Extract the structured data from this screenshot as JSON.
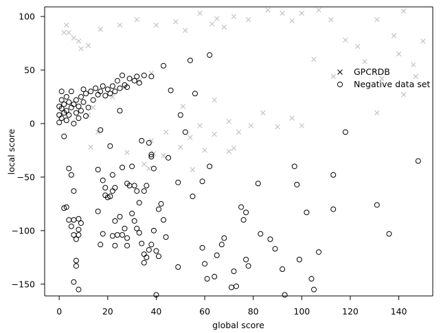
{
  "chart_data": {
    "type": "scatter",
    "xlabel": "global score",
    "ylabel": "local score",
    "xlim": [
      -6,
      154
    ],
    "ylim": [
      -161,
      109
    ],
    "x_ticks": [
      0,
      20,
      40,
      60,
      80,
      100,
      120,
      140
    ],
    "y_ticks": [
      -150,
      -100,
      -50,
      0,
      50,
      100
    ],
    "grid": false,
    "legend": "right",
    "series": [
      {
        "name": "GPCRDB",
        "marker": "x",
        "color": "#bfbfbf",
        "points": [
          [
            2,
            85
          ],
          [
            3,
            92
          ],
          [
            4,
            85
          ],
          [
            6,
            80
          ],
          [
            8,
            77
          ],
          [
            9,
            70
          ],
          [
            12,
            73
          ],
          [
            17,
            88
          ],
          [
            25,
            92
          ],
          [
            32,
            97
          ],
          [
            40,
            92
          ],
          [
            48,
            95
          ],
          [
            52,
            87
          ],
          [
            58,
            103
          ],
          [
            63,
            93
          ],
          [
            65,
            98
          ],
          [
            68,
            90
          ],
          [
            72,
            100
          ],
          [
            78,
            97
          ],
          [
            86,
            106
          ],
          [
            92,
            103
          ],
          [
            96,
            96
          ],
          [
            100,
            103
          ],
          [
            107,
            106
          ],
          [
            112,
            97
          ],
          [
            118,
            78
          ],
          [
            123,
            72
          ],
          [
            131,
            97
          ],
          [
            138,
            82
          ],
          [
            142,
            105
          ],
          [
            146,
            55
          ],
          [
            150,
            77
          ],
          [
            147,
            44
          ],
          [
            142,
            27
          ],
          [
            140,
            65
          ],
          [
            133,
            42
          ],
          [
            131,
            10
          ],
          [
            126,
            58
          ],
          [
            113,
            44
          ],
          [
            105,
            60
          ],
          [
            96,
            5
          ],
          [
            84,
            10
          ],
          [
            79,
            -2
          ],
          [
            74,
            -8
          ],
          [
            70,
            2
          ],
          [
            64,
            -10
          ],
          [
            58,
            -2
          ],
          [
            54,
            -13
          ],
          [
            51,
            16
          ],
          [
            44,
            -8
          ],
          [
            38,
            -16
          ],
          [
            43,
            -30
          ],
          [
            35,
            -38
          ],
          [
            55,
            -43
          ],
          [
            39,
            -28
          ],
          [
            13,
            -22
          ],
          [
            60,
            -25
          ],
          [
            16,
            -8
          ],
          [
            14,
            15
          ],
          [
            22,
            25
          ],
          [
            27,
            34
          ],
          [
            33,
            40
          ],
          [
            38,
            47
          ],
          [
            12,
            8
          ],
          [
            70,
            -26
          ],
          [
            64,
            22
          ],
          [
            72,
            -23
          ],
          [
            90,
            -3
          ],
          [
            100,
            -2
          ],
          [
            37,
            -42
          ],
          [
            28,
            -27
          ],
          [
            50,
            -22
          ]
        ]
      },
      {
        "name": "Negative data set",
        "marker": "o",
        "color": "#000000",
        "points": [
          [
            0,
            1
          ],
          [
            0,
            8
          ],
          [
            0,
            16
          ],
          [
            1,
            5
          ],
          [
            1,
            14
          ],
          [
            1,
            22
          ],
          [
            1,
            30
          ],
          [
            2,
            10
          ],
          [
            2,
            18
          ],
          [
            3,
            3
          ],
          [
            3,
            12
          ],
          [
            3,
            25
          ],
          [
            4,
            8
          ],
          [
            4,
            20
          ],
          [
            5,
            15
          ],
          [
            5,
            30
          ],
          [
            6,
            0
          ],
          [
            6,
            18
          ],
          [
            7,
            10
          ],
          [
            7,
            22
          ],
          [
            8,
            5
          ],
          [
            8,
            16
          ],
          [
            9,
            12
          ],
          [
            9,
            25
          ],
          [
            10,
            20
          ],
          [
            10,
            32
          ],
          [
            11,
            7
          ],
          [
            11,
            28
          ],
          [
            12,
            15
          ],
          [
            13,
            30
          ],
          [
            14,
            22
          ],
          [
            15,
            33
          ],
          [
            16,
            27
          ],
          [
            17,
            30
          ],
          [
            18,
            35
          ],
          [
            19,
            26
          ],
          [
            20,
            32
          ],
          [
            21,
            28
          ],
          [
            22,
            35
          ],
          [
            23,
            30
          ],
          [
            24,
            40
          ],
          [
            25,
            33
          ],
          [
            26,
            45
          ],
          [
            27,
            36
          ],
          [
            28,
            34
          ],
          [
            29,
            42
          ],
          [
            31,
            40
          ],
          [
            32,
            44
          ],
          [
            33,
            38
          ],
          [
            35,
            45
          ],
          [
            38,
            44
          ],
          [
            43,
            54
          ],
          [
            54,
            59
          ],
          [
            62,
            64
          ],
          [
            46,
            31
          ],
          [
            56,
            28
          ],
          [
            50,
            8
          ],
          [
            52,
            -8
          ],
          [
            25,
            12
          ],
          [
            17,
            -6
          ],
          [
            21,
            -21
          ],
          [
            2,
            -12
          ],
          [
            4,
            -42
          ],
          [
            5,
            -48
          ],
          [
            6,
            -63
          ],
          [
            2,
            -79
          ],
          [
            3,
            -78
          ],
          [
            4,
            -90
          ],
          [
            5,
            -96
          ],
          [
            6,
            -90
          ],
          [
            6,
            -104
          ],
          [
            7,
            -108
          ],
          [
            7,
            -128
          ],
          [
            7,
            -133
          ],
          [
            8,
            -89
          ],
          [
            8,
            -99
          ],
          [
            9,
            -93
          ],
          [
            8,
            -104
          ],
          [
            6,
            -148
          ],
          [
            8,
            -155
          ],
          [
            16,
            -43
          ],
          [
            18,
            -53
          ],
          [
            19,
            -67
          ],
          [
            20,
            -69
          ],
          [
            21,
            -68
          ],
          [
            22,
            -48
          ],
          [
            22,
            -63
          ],
          [
            23,
            -60
          ],
          [
            26,
            -41
          ],
          [
            28,
            -56
          ],
          [
            29,
            -58
          ],
          [
            30,
            -40
          ],
          [
            31,
            -58
          ],
          [
            32,
            -63
          ],
          [
            33,
            -74
          ],
          [
            34,
            -16
          ],
          [
            35,
            -63
          ],
          [
            36,
            -58
          ],
          [
            37,
            -18
          ],
          [
            38,
            -29
          ],
          [
            38,
            -31
          ],
          [
            39,
            -42
          ],
          [
            41,
            -80
          ],
          [
            42,
            -75
          ],
          [
            43,
            -90
          ],
          [
            16,
            -82
          ],
          [
            17,
            -113
          ],
          [
            18,
            -103
          ],
          [
            19,
            -60
          ],
          [
            22,
            -105
          ],
          [
            23,
            -114
          ],
          [
            23,
            -91
          ],
          [
            24,
            -104
          ],
          [
            25,
            -87
          ],
          [
            26,
            -104
          ],
          [
            27,
            -98
          ],
          [
            28,
            -107
          ],
          [
            28,
            -114
          ],
          [
            30,
            -84
          ],
          [
            31,
            -91
          ],
          [
            32,
            -98
          ],
          [
            33,
            -102
          ],
          [
            34,
            -112
          ],
          [
            35,
            -122
          ],
          [
            35,
            -130
          ],
          [
            36,
            -125
          ],
          [
            37,
            -118
          ],
          [
            38,
            -113
          ],
          [
            39,
            -100
          ],
          [
            40,
            -119
          ],
          [
            41,
            -124
          ],
          [
            44,
            -106
          ],
          [
            45,
            -32
          ],
          [
            49,
            -55
          ],
          [
            49,
            -134
          ],
          [
            55,
            -68
          ],
          [
            59,
            -54
          ],
          [
            59,
            -116
          ],
          [
            60,
            -131
          ],
          [
            62,
            -40
          ],
          [
            61,
            -145
          ],
          [
            64,
            -143
          ],
          [
            65,
            -123
          ],
          [
            67,
            -113
          ],
          [
            68,
            -107
          ],
          [
            71,
            -153
          ],
          [
            72,
            -138
          ],
          [
            73,
            -152
          ],
          [
            75,
            -78
          ],
          [
            76,
            -90
          ],
          [
            77,
            -83
          ],
          [
            77,
            -127
          ],
          [
            78,
            -133
          ],
          [
            82,
            -56
          ],
          [
            83,
            -103
          ],
          [
            87,
            -108
          ],
          [
            89,
            -117
          ],
          [
            92,
            -136
          ],
          [
            93,
            -160
          ],
          [
            97,
            -40
          ],
          [
            98,
            -57
          ],
          [
            99,
            -127
          ],
          [
            102,
            -83
          ],
          [
            104,
            -145
          ],
          [
            105,
            -155
          ],
          [
            107,
            -120
          ],
          [
            113,
            -48
          ],
          [
            113,
            -80
          ],
          [
            118,
            -8
          ],
          [
            131,
            -76
          ],
          [
            136,
            -103
          ],
          [
            148,
            -35
          ],
          [
            40,
            -160
          ]
        ]
      }
    ]
  }
}
